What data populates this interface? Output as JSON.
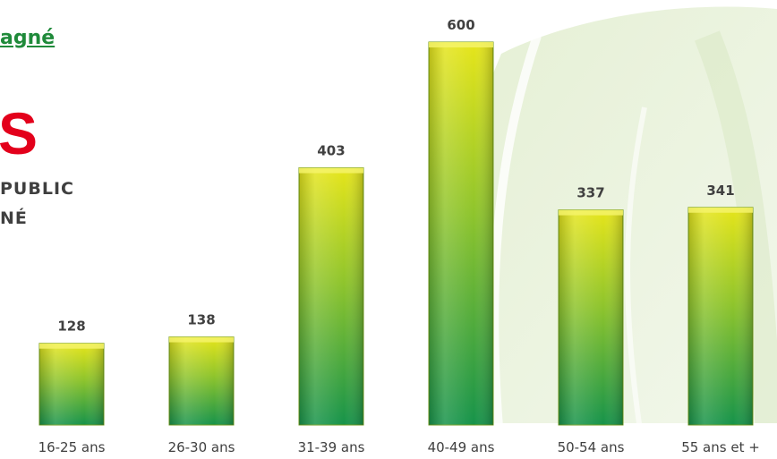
{
  "fragments": {
    "heading_link": "agné",
    "big_letter": "S",
    "subtitle_line1": "PUBLIC",
    "subtitle_line2": "NÉ"
  },
  "colors": {
    "bar_top": "#e6e51a",
    "bar_bottom": "#16934a",
    "fragment_red": "#e3001b",
    "fragment_green": "#1f8a3a"
  },
  "chart_data": {
    "type": "bar",
    "categories": [
      "16-25 ans",
      "26-30 ans",
      "31-39 ans",
      "40-49 ans",
      "50-54 ans",
      "55 ans et +"
    ],
    "values": [
      128,
      138,
      403,
      600,
      337,
      341
    ],
    "title": "",
    "xlabel": "",
    "ylabel": "",
    "ylim": [
      0,
      600
    ],
    "data_labels": true,
    "grid": false,
    "legend": "none"
  }
}
